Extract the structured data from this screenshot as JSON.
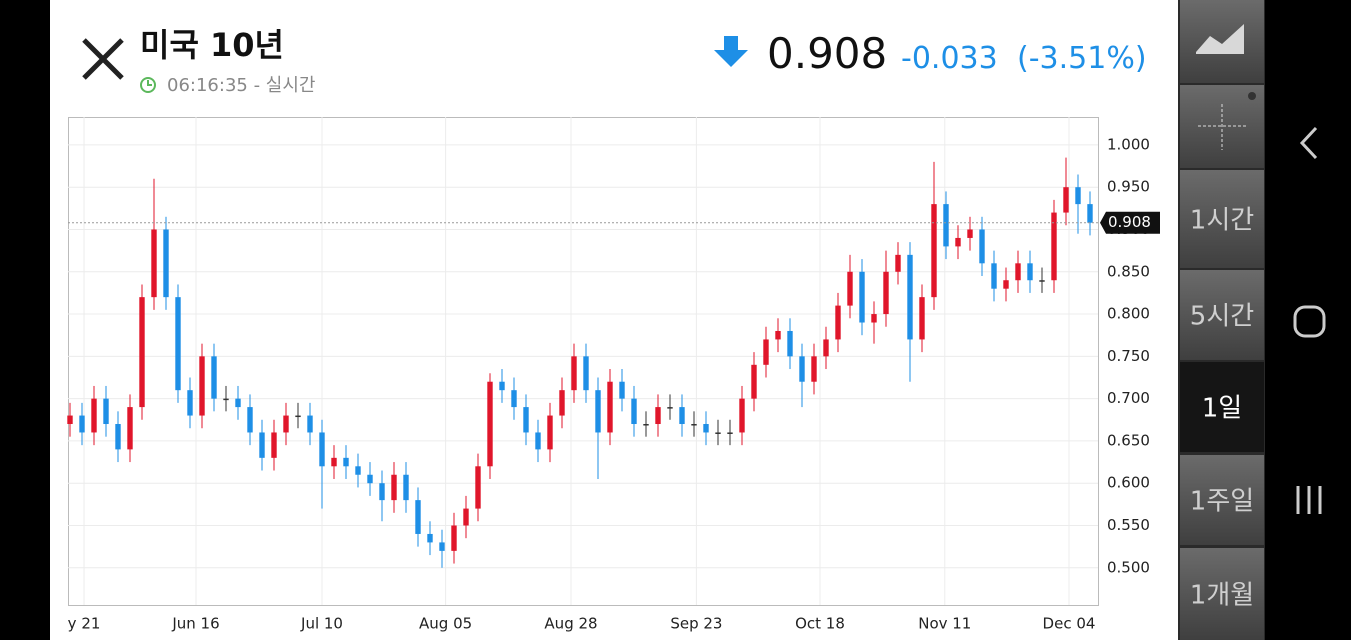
{
  "header": {
    "title": "미국 10년",
    "time": "06:16:35 - 실시간",
    "price": "0.908",
    "change": "-0.033",
    "change_pct": "(-3.51%)"
  },
  "chart_data": {
    "type": "candlestick",
    "up_color": "#e0162b",
    "down_color": "#1e8fe6",
    "xlim": [
      -0.1667,
      85.6667
    ],
    "xticks": [
      {
        "value": 1.17,
        "label": "y 21"
      },
      {
        "value": 10.5,
        "label": "Jun 16"
      },
      {
        "value": 21,
        "label": "Jul 10"
      },
      {
        "value": 31.3,
        "label": "Aug 05"
      },
      {
        "value": 41.75,
        "label": "Aug 28"
      },
      {
        "value": 52.2,
        "label": "Sep 23"
      },
      {
        "value": 62.5,
        "label": "Oct 18"
      },
      {
        "value": 72.9,
        "label": "Nov 11"
      },
      {
        "value": 83.25,
        "label": "Dec 04"
      }
    ],
    "ylim": [
      0.456,
      1.033
    ],
    "yticks": [
      {
        "value": 0.5,
        "label": "0.500"
      },
      {
        "value": 0.55,
        "label": "0.550"
      },
      {
        "value": 0.6,
        "label": "0.600"
      },
      {
        "value": 0.65,
        "label": "0.650"
      },
      {
        "value": 0.7,
        "label": "0.700"
      },
      {
        "value": 0.75,
        "label": "0.750"
      },
      {
        "value": 0.8,
        "label": "0.800"
      },
      {
        "value": 0.85,
        "label": "0.850"
      },
      {
        "value": 0.9,
        "label": "0.900"
      },
      {
        "value": 0.95,
        "label": "0.950"
      },
      {
        "value": 1.0,
        "label": "1.000"
      }
    ],
    "grid": true,
    "last_price": 0.908,
    "open": [
      0.67,
      0.68,
      0.66,
      0.7,
      0.67,
      0.64,
      0.69,
      0.82,
      0.9,
      0.82,
      0.71,
      0.68,
      0.75,
      0.7,
      0.7,
      0.69,
      0.66,
      0.63,
      0.66,
      0.68,
      0.68,
      0.66,
      0.62,
      0.63,
      0.62,
      0.61,
      0.6,
      0.58,
      0.61,
      0.58,
      0.54,
      0.53,
      0.52,
      0.55,
      0.57,
      0.62,
      0.72,
      0.71,
      0.69,
      0.66,
      0.64,
      0.68,
      0.71,
      0.75,
      0.71,
      0.66,
      0.72,
      0.7,
      0.67,
      0.67,
      0.69,
      0.69,
      0.67,
      0.67,
      0.66,
      0.66,
      0.66,
      0.7,
      0.74,
      0.77,
      0.78,
      0.75,
      0.72,
      0.75,
      0.77,
      0.81,
      0.85,
      0.79,
      0.8,
      0.85,
      0.87,
      0.77,
      0.82,
      0.93,
      0.88,
      0.89,
      0.9,
      0.86,
      0.83,
      0.84,
      0.86,
      0.84,
      0.84,
      0.92,
      0.95,
      0.93
    ],
    "high": [
      0.695,
      0.695,
      0.715,
      0.715,
      0.685,
      0.705,
      0.835,
      0.96,
      0.915,
      0.835,
      0.725,
      0.765,
      0.765,
      0.715,
      0.715,
      0.705,
      0.675,
      0.675,
      0.695,
      0.695,
      0.695,
      0.675,
      0.645,
      0.645,
      0.635,
      0.625,
      0.615,
      0.625,
      0.625,
      0.595,
      0.555,
      0.545,
      0.565,
      0.585,
      0.635,
      0.73,
      0.735,
      0.725,
      0.705,
      0.675,
      0.695,
      0.725,
      0.765,
      0.765,
      0.725,
      0.735,
      0.735,
      0.715,
      0.685,
      0.705,
      0.705,
      0.705,
      0.685,
      0.685,
      0.675,
      0.675,
      0.715,
      0.755,
      0.785,
      0.795,
      0.795,
      0.765,
      0.765,
      0.785,
      0.825,
      0.87,
      0.865,
      0.815,
      0.875,
      0.885,
      0.885,
      0.835,
      0.98,
      0.945,
      0.905,
      0.915,
      0.915,
      0.875,
      0.855,
      0.875,
      0.875,
      0.855,
      0.935,
      0.985,
      0.965,
      0.945
    ],
    "low": [
      0.655,
      0.645,
      0.645,
      0.655,
      0.625,
      0.625,
      0.675,
      0.805,
      0.805,
      0.695,
      0.665,
      0.665,
      0.685,
      0.685,
      0.675,
      0.645,
      0.615,
      0.615,
      0.645,
      0.665,
      0.645,
      0.57,
      0.605,
      0.605,
      0.595,
      0.585,
      0.555,
      0.565,
      0.565,
      0.525,
      0.515,
      0.5,
      0.505,
      0.535,
      0.555,
      0.605,
      0.695,
      0.675,
      0.645,
      0.625,
      0.625,
      0.665,
      0.695,
      0.695,
      0.605,
      0.645,
      0.685,
      0.655,
      0.655,
      0.655,
      0.675,
      0.655,
      0.655,
      0.645,
      0.645,
      0.645,
      0.645,
      0.685,
      0.725,
      0.755,
      0.735,
      0.69,
      0.705,
      0.735,
      0.755,
      0.795,
      0.775,
      0.765,
      0.785,
      0.835,
      0.72,
      0.755,
      0.805,
      0.865,
      0.865,
      0.875,
      0.845,
      0.815,
      0.815,
      0.825,
      0.825,
      0.825,
      0.825,
      0.905,
      0.895,
      0.893
    ],
    "close": [
      0.68,
      0.66,
      0.7,
      0.67,
      0.64,
      0.69,
      0.82,
      0.9,
      0.82,
      0.71,
      0.68,
      0.75,
      0.7,
      0.7,
      0.69,
      0.66,
      0.63,
      0.66,
      0.68,
      0.68,
      0.66,
      0.62,
      0.63,
      0.62,
      0.61,
      0.6,
      0.58,
      0.61,
      0.58,
      0.54,
      0.53,
      0.52,
      0.55,
      0.57,
      0.62,
      0.72,
      0.71,
      0.69,
      0.66,
      0.64,
      0.68,
      0.71,
      0.75,
      0.71,
      0.66,
      0.72,
      0.7,
      0.67,
      0.67,
      0.69,
      0.69,
      0.67,
      0.67,
      0.66,
      0.66,
      0.66,
      0.7,
      0.74,
      0.77,
      0.78,
      0.75,
      0.72,
      0.75,
      0.77,
      0.81,
      0.85,
      0.79,
      0.8,
      0.85,
      0.87,
      0.77,
      0.82,
      0.93,
      0.88,
      0.89,
      0.9,
      0.86,
      0.83,
      0.84,
      0.86,
      0.84,
      0.84,
      0.92,
      0.95,
      0.93,
      0.908
    ]
  },
  "sidebar": {
    "buttons": [
      "1시간",
      "5시간",
      "1일",
      "1주일",
      "1개월"
    ],
    "selected": 2
  }
}
